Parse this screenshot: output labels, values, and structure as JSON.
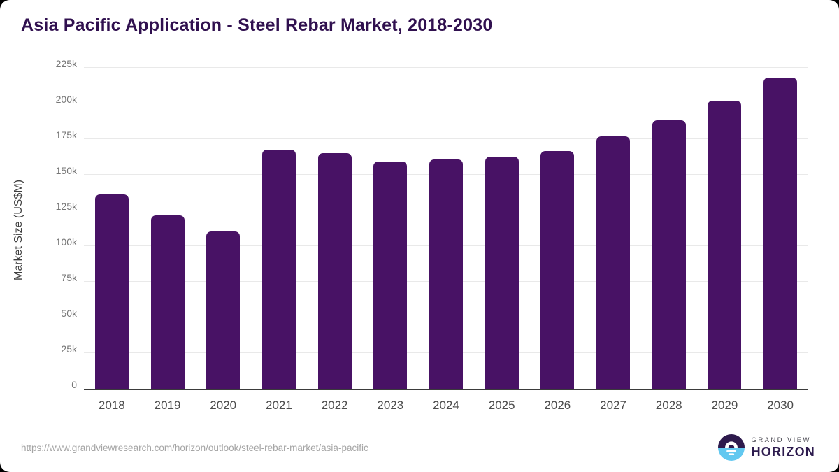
{
  "chart_data": {
    "type": "bar",
    "title": "Asia Pacific Application - Steel Rebar Market, 2018-2030",
    "ylabel": "Market Size (US$M)",
    "xlabel": "",
    "categories": [
      "2018",
      "2019",
      "2020",
      "2021",
      "2022",
      "2023",
      "2024",
      "2025",
      "2026",
      "2027",
      "2028",
      "2029",
      "2030"
    ],
    "values": [
      137000,
      122000,
      111000,
      168500,
      166000,
      160000,
      161500,
      163500,
      167500,
      177500,
      189000,
      203000,
      219000
    ],
    "ylim": [
      0,
      225000
    ],
    "ytick_step": 25000,
    "ytick_labels": [
      "0",
      "25k",
      "50k",
      "75k",
      "100k",
      "125k",
      "150k",
      "175k",
      "200k",
      "225k"
    ],
    "grid": true,
    "legend": false,
    "bar_color": "#481265",
    "grid_color": "#e9e9e9",
    "axis_line_color": "#3b3b3b",
    "title_color": "#30104f"
  },
  "footer": {
    "url": "https://www.grandviewresearch.com/horizon/outlook/steel-rebar-market/asia-pacific",
    "logo": {
      "line1": "GRAND VIEW",
      "line2": "HORIZON",
      "icon_dark": "#2e1a4d",
      "icon_blue": "#62c8f0"
    }
  }
}
